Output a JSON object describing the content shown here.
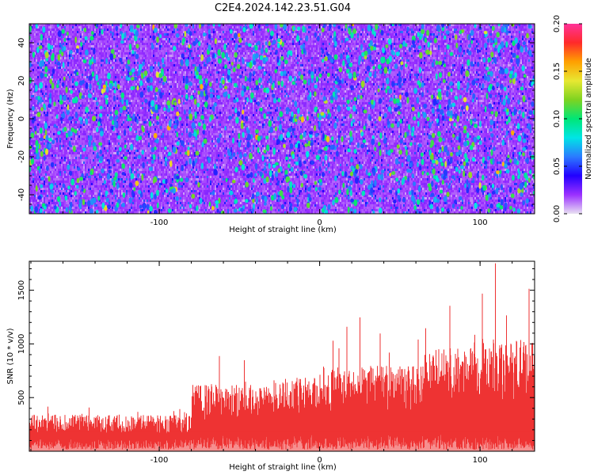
{
  "figure": {
    "title": "C2E4.2024.142.23.51.G04"
  },
  "chart_data": [
    {
      "type": "heatmap",
      "title": "C2E4.2024.142.23.51.G04",
      "xlabel": "Height of straight line (km)",
      "ylabel": "Frequency (Hz)",
      "xlim": [
        -181,
        134
      ],
      "ylim": [
        -50,
        50
      ],
      "xticks": [
        -100,
        0,
        100
      ],
      "yticks": [
        -40,
        -20,
        0,
        20,
        40
      ],
      "colorbar": {
        "label": "Normalized spectral amplitude",
        "range": [
          0.0,
          0.2
        ],
        "ticks": [
          "0.00",
          "0.05",
          "0.10",
          "0.15",
          "0.20"
        ],
        "colormap": [
          "#e8e0f2",
          "#9b30ff",
          "#2200ff",
          "#2b7bff",
          "#00e5e5",
          "#00e676",
          "#7ed321",
          "#e8e832",
          "#ffa000",
          "#ff2a2a",
          "#ff3399"
        ]
      },
      "z_distribution": {
        "background_typical": 0.02,
        "blob_range": [
          0.06,
          0.12
        ],
        "max_observed": 0.16
      }
    },
    {
      "type": "area",
      "xlabel": "Height of straight line (km)",
      "ylabel": "SNR (10 * v/v)",
      "xlim": [
        -181,
        134
      ],
      "ylim": [
        0,
        1770
      ],
      "xticks": [
        -100,
        0,
        100
      ],
      "yticks": [
        500,
        1000,
        1500
      ],
      "color": "#ee3333",
      "segments": [
        {
          "x": [
            -181,
            -80
          ],
          "typical_max": 340,
          "peak": 440
        },
        {
          "x": [
            -80,
            -30
          ],
          "typical_max": 620,
          "peak": 1000
        },
        {
          "x": [
            -30,
            0
          ],
          "typical_max": 690,
          "peak": 1000
        },
        {
          "x": [
            0,
            30
          ],
          "typical_max": 780,
          "peak": 1280
        },
        {
          "x": [
            30,
            65
          ],
          "typical_max": 800,
          "peak": 1200
        },
        {
          "x": [
            65,
            100
          ],
          "typical_max": 960,
          "peak": 1400
        },
        {
          "x": [
            100,
            134
          ],
          "typical_max": 1050,
          "peak": 1770
        }
      ]
    }
  ]
}
